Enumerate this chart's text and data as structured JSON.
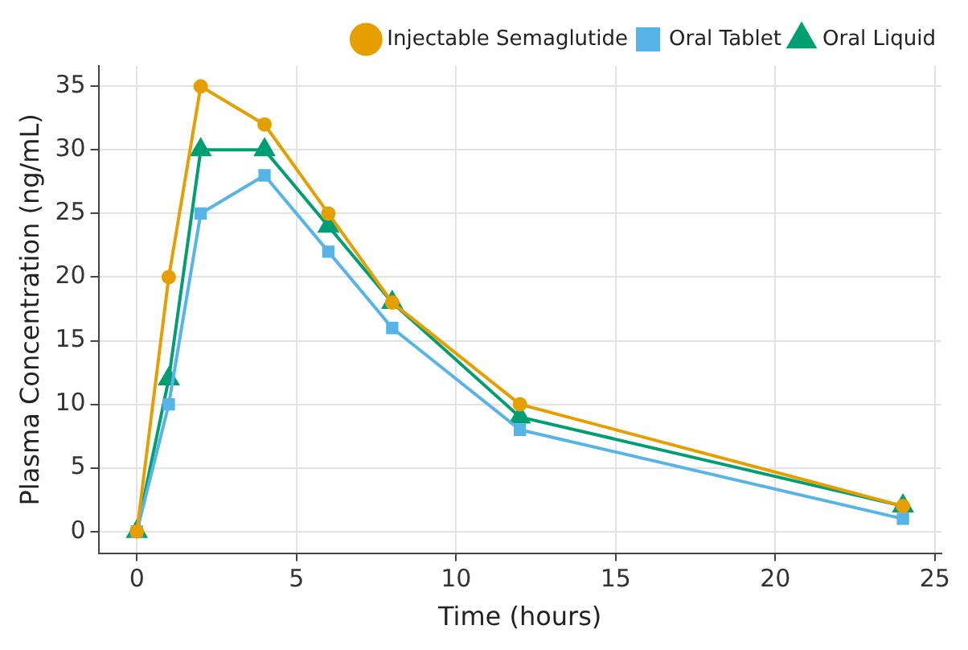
{
  "chart_data": {
    "type": "line",
    "xlabel": "Time (hours)",
    "ylabel": "Plasma Concentration (ng/mL)",
    "x": [
      0,
      1,
      2,
      4,
      6,
      8,
      12,
      24
    ],
    "series": [
      {
        "name": "Injectable Semaglutide",
        "color": "#e69f00",
        "marker": "circle",
        "values": [
          0,
          20,
          35,
          32,
          25,
          18,
          10,
          2
        ]
      },
      {
        "name": "Oral Tablet",
        "color": "#56b4e9",
        "marker": "square",
        "values": [
          0,
          10,
          25,
          28,
          22,
          16,
          8,
          1
        ]
      },
      {
        "name": "Oral Liquid",
        "color": "#009e73",
        "marker": "triangle",
        "values": [
          0,
          12,
          30,
          30,
          24,
          18,
          9,
          2
        ]
      }
    ],
    "xlim": [
      -1.2,
      25.2
    ],
    "xticks": [
      0,
      5,
      10,
      15,
      20,
      25
    ],
    "ylim": [
      -1.7,
      36.6
    ],
    "yticks": [
      0,
      5,
      10,
      15,
      20,
      25,
      30,
      35
    ],
    "grid": true,
    "legend": "top right"
  }
}
